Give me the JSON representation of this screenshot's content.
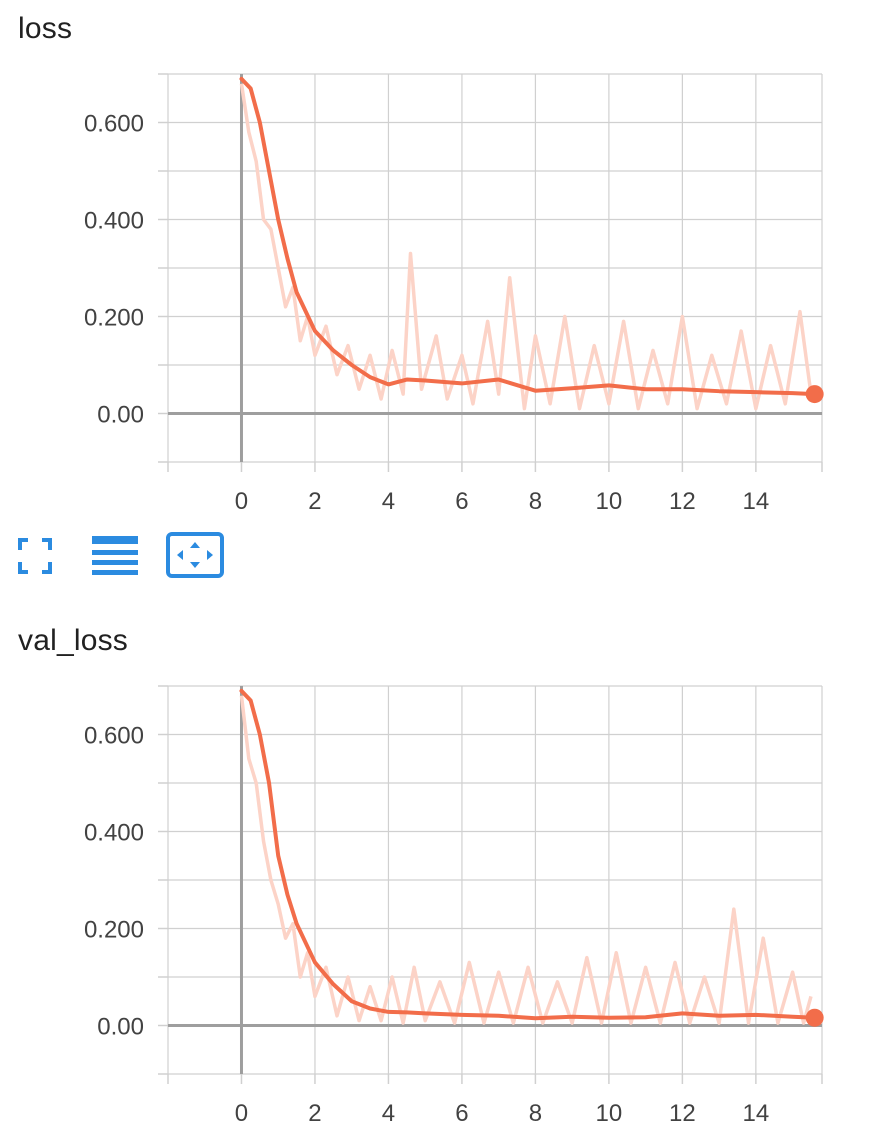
{
  "colors": {
    "smoothed": "#f26d4a",
    "raw": "#fcd3c7",
    "grid": "#d0d0d0",
    "axis": "#9e9e9e",
    "toolbar_icon": "#2b8be0"
  },
  "toolbar": {
    "icons": [
      "fullscreen-icon",
      "list-icon",
      "fit-domain-icon"
    ]
  },
  "chart_data": [
    {
      "type": "line",
      "title": "loss",
      "xlim": [
        -2,
        15.8
      ],
      "ylim": [
        -0.1,
        0.7
      ],
      "x_ticks": [
        0,
        2,
        4,
        6,
        8,
        10,
        12,
        14
      ],
      "x_tick_labels": [
        "0",
        "2",
        "4",
        "6",
        "8",
        "10",
        "12",
        "14"
      ],
      "y_ticks": [
        0,
        0.2,
        0.4,
        0.6
      ],
      "y_tick_labels": [
        "0.00",
        "0.200",
        "0.400",
        "0.600"
      ],
      "grid": true,
      "series": [
        {
          "role": "smoothed",
          "x": [
            0,
            0.25,
            0.5,
            0.75,
            1,
            1.25,
            1.5,
            1.75,
            2,
            2.5,
            3,
            3.5,
            4,
            4.5,
            5,
            6,
            7,
            8,
            9,
            10,
            11,
            12,
            13,
            14,
            15,
            15.6
          ],
          "y": [
            0.69,
            0.67,
            0.6,
            0.5,
            0.4,
            0.32,
            0.25,
            0.21,
            0.17,
            0.13,
            0.1,
            0.075,
            0.06,
            0.07,
            0.068,
            0.062,
            0.07,
            0.047,
            0.052,
            0.058,
            0.05,
            0.05,
            0.046,
            0.044,
            0.042,
            0.04
          ]
        },
        {
          "role": "raw",
          "x": [
            0,
            0.2,
            0.4,
            0.6,
            0.8,
            1,
            1.2,
            1.4,
            1.6,
            1.8,
            2,
            2.3,
            2.6,
            2.9,
            3.2,
            3.5,
            3.8,
            4.1,
            4.4,
            4.6,
            4.9,
            5.3,
            5.6,
            6,
            6.3,
            6.7,
            7,
            7.3,
            7.7,
            8,
            8.4,
            8.8,
            9.2,
            9.6,
            10,
            10.4,
            10.8,
            11.2,
            11.6,
            12,
            12.4,
            12.8,
            13.2,
            13.6,
            14,
            14.4,
            14.8,
            15.2,
            15.5
          ],
          "y": [
            0.68,
            0.58,
            0.52,
            0.4,
            0.38,
            0.3,
            0.22,
            0.26,
            0.15,
            0.2,
            0.12,
            0.18,
            0.08,
            0.14,
            0.05,
            0.12,
            0.03,
            0.13,
            0.04,
            0.33,
            0.05,
            0.16,
            0.03,
            0.12,
            0.02,
            0.19,
            0.04,
            0.28,
            0.01,
            0.16,
            0.02,
            0.2,
            0.01,
            0.14,
            0.02,
            0.19,
            0.01,
            0.13,
            0.02,
            0.2,
            0.01,
            0.12,
            0.02,
            0.17,
            0.01,
            0.14,
            0.02,
            0.21,
            0.04
          ]
        }
      ]
    },
    {
      "type": "line",
      "title": "val_loss",
      "xlim": [
        -2,
        15.8
      ],
      "ylim": [
        -0.1,
        0.7
      ],
      "x_ticks": [
        0,
        2,
        4,
        6,
        8,
        10,
        12,
        14
      ],
      "x_tick_labels": [
        "0",
        "2",
        "4",
        "6",
        "8",
        "10",
        "12",
        "14"
      ],
      "y_ticks": [
        0,
        0.2,
        0.4,
        0.6
      ],
      "y_tick_labels": [
        "0.00",
        "0.200",
        "0.400",
        "0.600"
      ],
      "grid": true,
      "series": [
        {
          "role": "smoothed",
          "x": [
            0,
            0.25,
            0.5,
            0.75,
            1,
            1.25,
            1.5,
            1.75,
            2,
            2.5,
            3,
            3.5,
            4,
            4.5,
            5,
            6,
            7,
            8,
            9,
            10,
            11,
            12,
            13,
            14,
            15,
            15.6
          ],
          "y": [
            0.69,
            0.67,
            0.6,
            0.5,
            0.35,
            0.27,
            0.21,
            0.17,
            0.13,
            0.085,
            0.05,
            0.035,
            0.028,
            0.027,
            0.025,
            0.022,
            0.02,
            0.015,
            0.018,
            0.016,
            0.017,
            0.025,
            0.02,
            0.022,
            0.018,
            0.016
          ]
        },
        {
          "role": "raw",
          "x": [
            0,
            0.2,
            0.4,
            0.6,
            0.8,
            1,
            1.2,
            1.4,
            1.6,
            1.8,
            2,
            2.3,
            2.6,
            2.9,
            3.2,
            3.5,
            3.8,
            4.1,
            4.4,
            4.7,
            5,
            5.4,
            5.8,
            6.2,
            6.6,
            7,
            7.4,
            7.8,
            8.2,
            8.6,
            9,
            9.4,
            9.8,
            10.2,
            10.6,
            11,
            11.4,
            11.8,
            12.2,
            12.6,
            13,
            13.4,
            13.8,
            14.2,
            14.6,
            15,
            15.3,
            15.5
          ],
          "y": [
            0.68,
            0.55,
            0.5,
            0.38,
            0.3,
            0.25,
            0.18,
            0.21,
            0.1,
            0.15,
            0.06,
            0.12,
            0.02,
            0.1,
            0.01,
            0.08,
            0.01,
            0.1,
            0.005,
            0.12,
            0.01,
            0.09,
            0.005,
            0.13,
            0.005,
            0.11,
            0.005,
            0.12,
            0.005,
            0.09,
            0.005,
            0.14,
            0.005,
            0.15,
            0.005,
            0.12,
            0.005,
            0.13,
            0.005,
            0.1,
            0.005,
            0.24,
            0.005,
            0.18,
            0.005,
            0.11,
            0.005,
            0.06
          ]
        }
      ]
    }
  ]
}
